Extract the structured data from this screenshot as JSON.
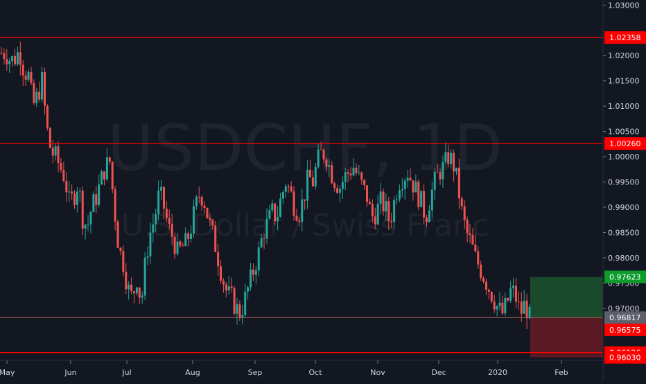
{
  "watermark": {
    "symbol": "USDCHF, 1D",
    "description": "U.S. Dollar / Swiss Franc"
  },
  "colors": {
    "background": "#131722",
    "up": "#26a69a",
    "down": "#ef5350",
    "hline": "#ff0000",
    "last_price_line": "#26a69a",
    "target_zone": "#1a4a2c",
    "stop_zone": "#5a1a24",
    "axis_text": "#d1d4dc"
  },
  "chart_data": {
    "type": "candlestick",
    "y_axis": {
      "min": 0.9597,
      "max": 1.031,
      "tick_labels": [
        "1.03000",
        "1.02000",
        "1.01500",
        "1.01000",
        "1.00500",
        "1.00000",
        "0.99500",
        "0.99000",
        "0.98500",
        "0.98000",
        "0.97500",
        "0.97000"
      ],
      "tick_values": [
        1.03,
        1.02,
        1.015,
        1.01,
        1.005,
        1.0,
        0.995,
        0.99,
        0.985,
        0.98,
        0.975,
        0.97
      ]
    },
    "x_axis": {
      "labels": [
        "May",
        "Jun",
        "Jul",
        "Aug",
        "Sep",
        "Oct",
        "Nov",
        "Dec",
        "2020",
        "Feb"
      ]
    },
    "horizontal_lines": [
      1.02358,
      1.0026,
      0.96817,
      0.96126
    ],
    "price_labels": [
      {
        "text": "1.02358",
        "value": 1.02358,
        "kind": "line"
      },
      {
        "text": "1.00260",
        "value": 1.0026,
        "kind": "line"
      },
      {
        "text": "0.97623",
        "value": 0.97623,
        "kind": "target"
      },
      {
        "text": "0.96813",
        "value": 0.96813,
        "kind": "last"
      },
      {
        "text": "0.96817",
        "value": 0.96817,
        "kind": "entry"
      },
      {
        "text": "0.96575",
        "value": 0.96575,
        "kind": "line"
      },
      {
        "text": "0.96126",
        "value": 0.96126,
        "kind": "line"
      },
      {
        "text": "0.96030",
        "value": 0.9603,
        "kind": "line"
      }
    ],
    "last_price": 0.96813,
    "position": {
      "entry": 0.96817,
      "target": 0.97623,
      "stop": 0.9603
    },
    "path": [
      [
        1.0205,
        1.0205
      ],
      [
        1.019,
        1.0195
      ],
      [
        1.021,
        1.017
      ],
      [
        1.016,
        1.01
      ],
      [
        1.012,
        1.015
      ],
      [
        1.006,
        1.001
      ],
      [
        1.0,
        0.998
      ],
      [
        0.996,
        0.991
      ],
      [
        0.992,
        0.995
      ],
      [
        0.988,
        0.986
      ],
      [
        0.99,
        0.992
      ],
      [
        0.995,
        0.998
      ],
      [
        0.999,
        0.99
      ],
      [
        0.982,
        0.979
      ],
      [
        0.974,
        0.972
      ],
      [
        0.976,
        0.971
      ],
      [
        0.98,
        0.985
      ],
      [
        0.988,
        0.993
      ],
      [
        0.99,
        0.986
      ],
      [
        0.984,
        0.981
      ],
      [
        0.982,
        0.983
      ],
      [
        0.986,
        0.99
      ],
      [
        0.993,
        0.991
      ],
      [
        0.987,
        0.984
      ],
      [
        0.98,
        0.976
      ],
      [
        0.973,
        0.972
      ],
      [
        0.97,
        0.969
      ],
      [
        0.972,
        0.975
      ],
      [
        0.978,
        0.981
      ],
      [
        0.985,
        0.987
      ],
      [
        0.989,
        0.988
      ],
      [
        0.992,
        0.995
      ],
      [
        0.993,
        0.99
      ],
      [
        0.989,
        0.992
      ],
      [
        0.996,
        0.995
      ],
      [
        0.999,
        1.001
      ],
      [
        1.0,
        0.997
      ],
      [
        0.995,
        0.994
      ],
      [
        0.996,
        0.997
      ],
      [
        0.998,
        0.996
      ],
      [
        0.994,
        0.992
      ],
      [
        0.988,
        0.989
      ],
      [
        0.991,
        0.99
      ],
      [
        0.987,
        0.991
      ],
      [
        0.995,
        0.996
      ],
      [
        0.997,
        0.995
      ],
      [
        0.993,
        0.991
      ],
      [
        0.988,
        0.992
      ],
      [
        0.995,
        0.997
      ],
      [
        0.998,
        1.0
      ],
      [
        0.999,
        0.995
      ],
      [
        0.989,
        0.985
      ],
      [
        0.983,
        0.98
      ],
      [
        0.978,
        0.976
      ],
      [
        0.974,
        0.972
      ],
      [
        0.97,
        0.969
      ],
      [
        0.971,
        0.974
      ],
      [
        0.972,
        0.969
      ],
      [
        0.971,
        0.9681
      ]
    ]
  }
}
